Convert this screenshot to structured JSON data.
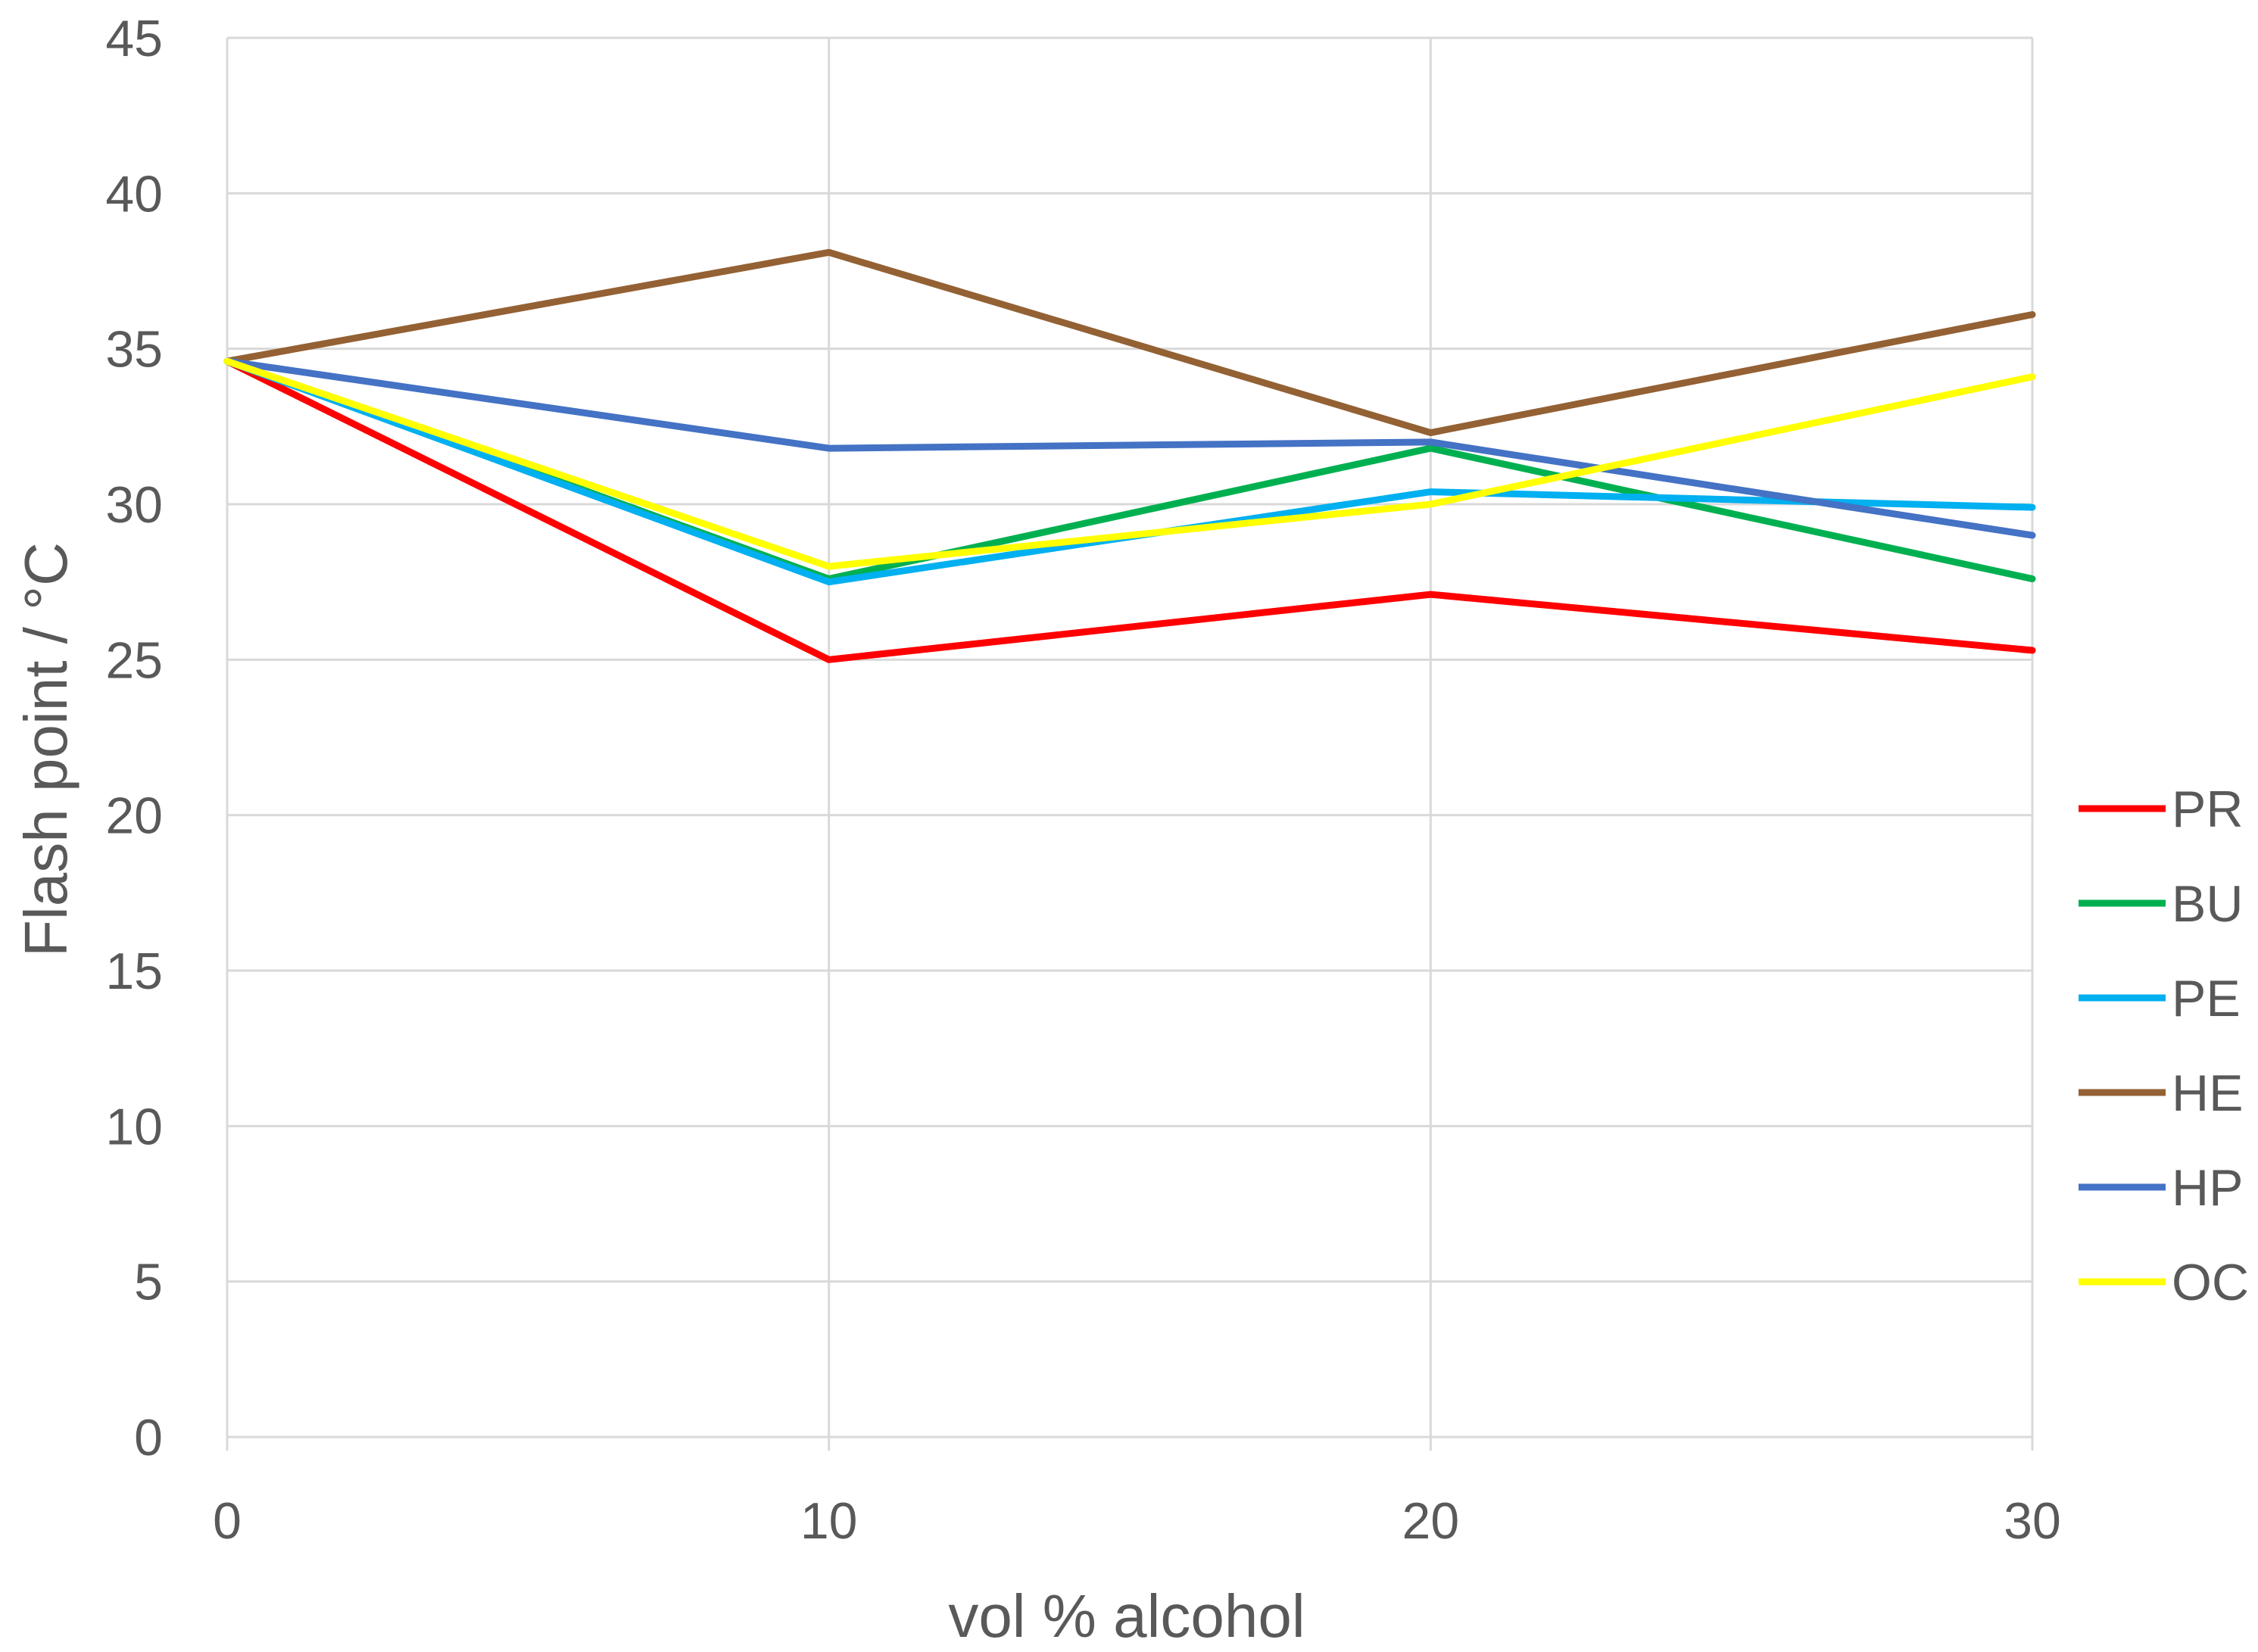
{
  "chart_data": {
    "type": "line",
    "title": "",
    "xlabel": "vol % alcohol",
    "ylabel": "Flash point / °C",
    "x": [
      0,
      10,
      20,
      30
    ],
    "xlim": [
      0,
      30
    ],
    "ylim": [
      0,
      45
    ],
    "xticks": [
      0,
      10,
      20,
      30
    ],
    "yticks": [
      0,
      5,
      10,
      15,
      20,
      25,
      30,
      35,
      40,
      45
    ],
    "grid": true,
    "legend_position": "right",
    "series": [
      {
        "name": "PR",
        "color": "#ff0000",
        "values": [
          34.6,
          25.0,
          27.1,
          25.3
        ]
      },
      {
        "name": "BU",
        "color": "#00b050",
        "values": [
          34.6,
          27.6,
          31.8,
          27.6
        ]
      },
      {
        "name": "PE",
        "color": "#00b0f0",
        "values": [
          34.6,
          27.5,
          30.4,
          29.9
        ]
      },
      {
        "name": "HE",
        "color": "#946134",
        "values": [
          34.6,
          38.1,
          32.3,
          36.1
        ]
      },
      {
        "name": "HP",
        "color": "#4472c4",
        "values": [
          34.6,
          31.8,
          32.0,
          29.0
        ]
      },
      {
        "name": "OC",
        "color": "#ffff00",
        "values": [
          34.6,
          28.0,
          30.0,
          34.1
        ]
      }
    ]
  }
}
